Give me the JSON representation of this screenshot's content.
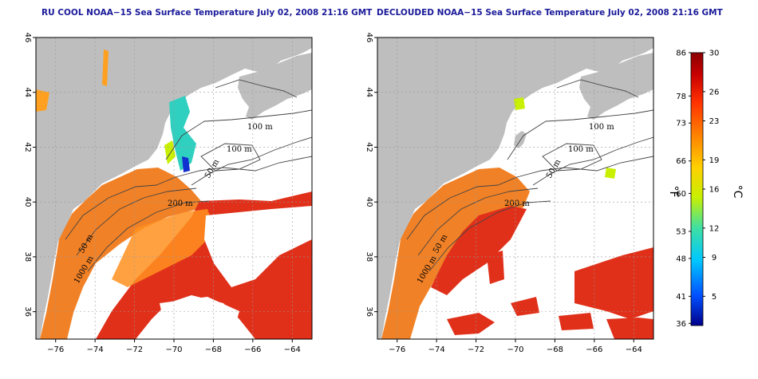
{
  "maps": [
    {
      "title": "RU COOL NOAA−15 Sea Surface Temperature July 02, 2008 21:16 GMT",
      "contour_labels": [
        "100 m",
        "100 m",
        "50 m",
        "200 m",
        "50 m",
        "1000 m"
      ]
    },
    {
      "title": "DECLOUDED NOAA−15 Sea Surface Temperature July 02, 2008 21:16 GMT",
      "contour_labels": [
        "100 m",
        "100 m",
        "50 m",
        "200 m",
        "50 m",
        "1000 m"
      ]
    }
  ],
  "axes": {
    "lon_ticks": [
      "−76",
      "−74",
      "−72",
      "−70",
      "−68",
      "−66",
      "−64"
    ],
    "lat_ticks": [
      "46",
      "44",
      "42",
      "40",
      "38",
      "36"
    ],
    "lon_range": [
      -77,
      -63
    ],
    "lat_range": [
      35,
      46
    ]
  },
  "colorbar": {
    "fahrenheit_label": "°F",
    "celsius_label": "°C",
    "fahrenheit_ticks": [
      "86",
      "78",
      "73",
      "66",
      "60",
      "53",
      "48",
      "41",
      "36"
    ],
    "celsius_ticks": [
      "30",
      "26",
      "23",
      "19",
      "16",
      "12",
      "9",
      "5"
    ],
    "range_c": [
      2,
      30
    ],
    "colors": [
      "#00008b",
      "#0050ff",
      "#00c8ff",
      "#40e0a0",
      "#c8f000",
      "#ffd000",
      "#ff8000",
      "#ff3000",
      "#c80000",
      "#8b0000"
    ]
  }
}
